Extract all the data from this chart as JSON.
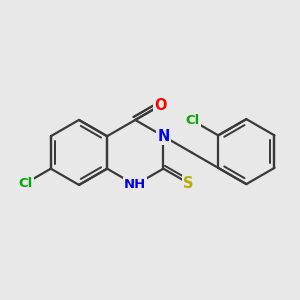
{
  "bg_color": "#e8e8e8",
  "bond_color": "#3a3a3a",
  "bond_width": 1.6,
  "atom_colors": {
    "N": "#0000ee",
    "O": "#ff0000",
    "S": "#bbaa00",
    "Cl": "#00aa00"
  },
  "font_size": 9.5,
  "figsize": [
    3.0,
    3.0
  ],
  "dpi": 100
}
